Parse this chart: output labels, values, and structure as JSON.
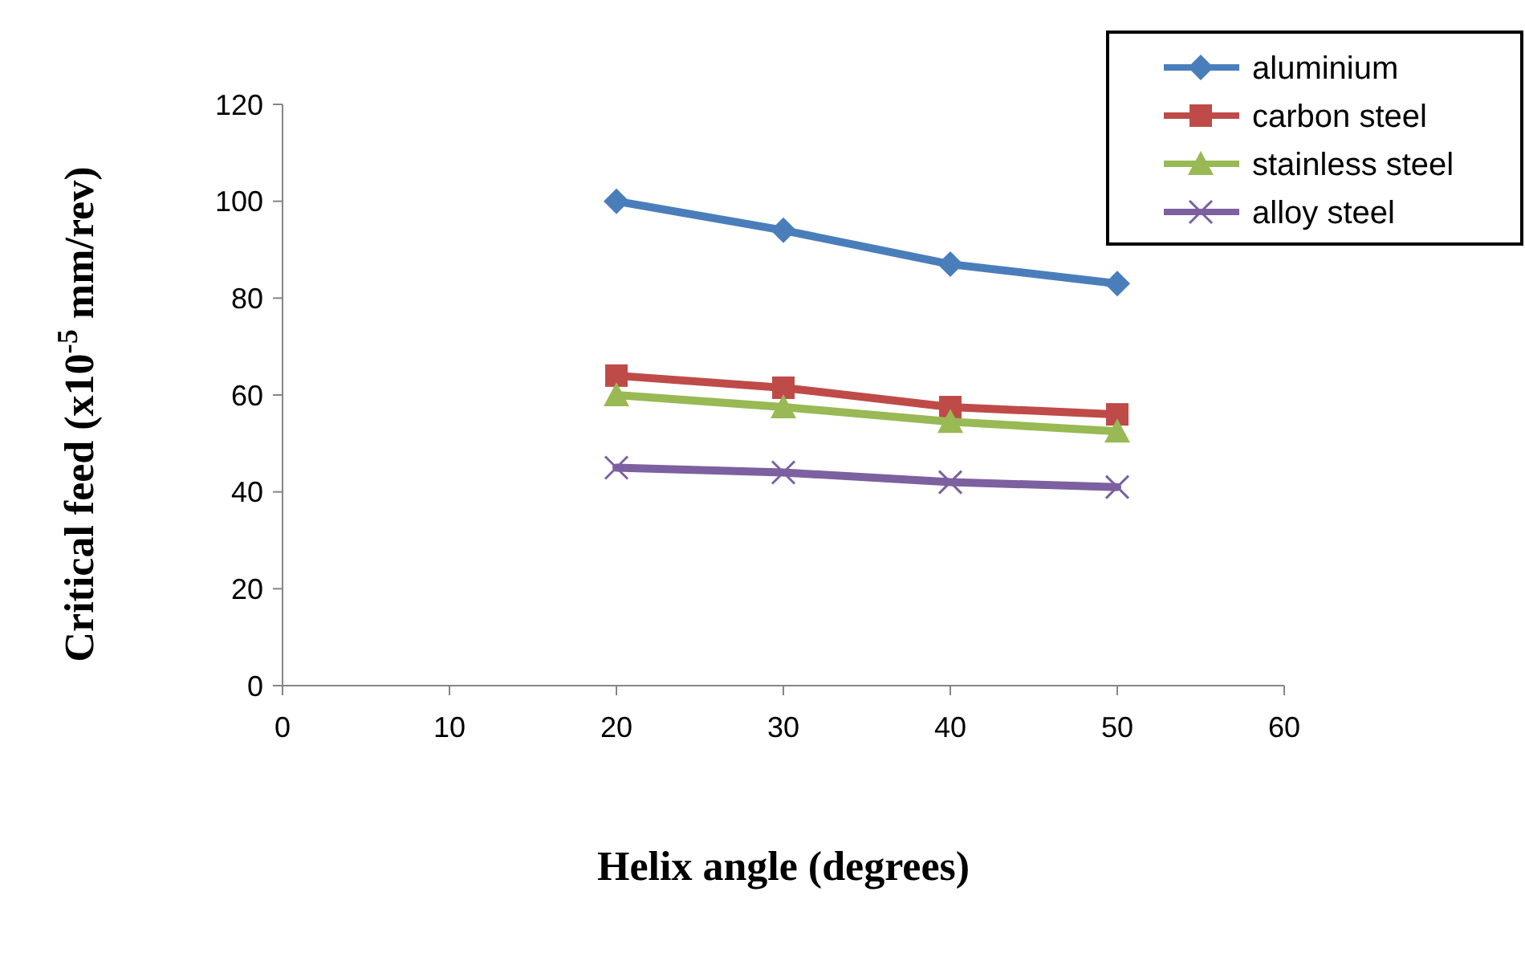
{
  "chart_data": {
    "type": "line",
    "xlabel": "Helix angle (degrees)",
    "ylabel": "Critical feed (x10$^{-5}$ mm/rev)",
    "x": [
      20,
      30,
      40,
      50
    ],
    "series": [
      {
        "name": "aluminium",
        "color": "#4a7ebb",
        "marker": "diamond",
        "values": [
          100,
          94,
          87,
          83
        ]
      },
      {
        "name": "carbon steel",
        "color": "#be4b48",
        "marker": "square",
        "values": [
          64,
          61.5,
          57.5,
          56
        ]
      },
      {
        "name": "stainless steel",
        "color": "#98b954",
        "marker": "triangle",
        "values": [
          60,
          57.5,
          54.5,
          52.5
        ]
      },
      {
        "name": "alloy steel",
        "color": "#7d60a0",
        "marker": "cross",
        "values": [
          45,
          44,
          42,
          41
        ]
      }
    ],
    "xlim": [
      0,
      60
    ],
    "xticks": [
      0,
      10,
      20,
      30,
      40,
      50,
      60
    ],
    "ylim": [
      0,
      120
    ],
    "yticks": [
      0,
      20,
      40,
      60,
      80,
      100,
      120
    ],
    "grid": false,
    "legend": "top right",
    "line_style": "solid"
  }
}
